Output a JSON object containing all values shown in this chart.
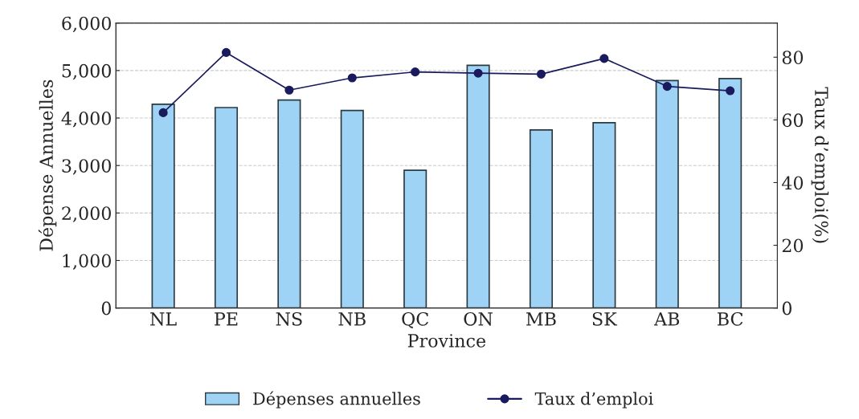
{
  "chart_data": {
    "type": "bar",
    "xlabel": "Province",
    "ylabel": "Dépense Annuelles",
    "y2label": "Taux d’emploi(%)",
    "categories": [
      "NL",
      "PE",
      "NS",
      "NB",
      "QC",
      "ON",
      "MB",
      "SK",
      "AB",
      "BC"
    ],
    "series": [
      {
        "name": "Dépenses annuelles",
        "color": "#9fd3f5",
        "values": [
          4290,
          4220,
          4380,
          4160,
          2900,
          5110,
          3750,
          3900,
          4790,
          4830
        ]
      },
      {
        "name": "Taux d’emploi",
        "type": "line",
        "axis": "y2",
        "color": "#1a1a5e",
        "marker": "circle",
        "line_style": "solid",
        "values": [
          62.3,
          81.5,
          69.5,
          73.4,
          75.3,
          74.9,
          74.6,
          79.6,
          70.7,
          69.3
        ]
      }
    ],
    "ylim": [
      0,
      6000
    ],
    "yticks": [
      {
        "value": 0,
        "label": "0"
      },
      {
        "value": 1000,
        "label": "1,000"
      },
      {
        "value": 2000,
        "label": "2,000"
      },
      {
        "value": 3000,
        "label": "3,000"
      },
      {
        "value": 4000,
        "label": "4,000"
      },
      {
        "value": 5000,
        "label": "5,000"
      },
      {
        "value": 6000,
        "label": "6,000"
      }
    ],
    "y2lim": [
      0,
      90.9
    ],
    "y2ticks": [
      0,
      20,
      40,
      60,
      80
    ],
    "grid": "y",
    "legend": "bottom"
  }
}
